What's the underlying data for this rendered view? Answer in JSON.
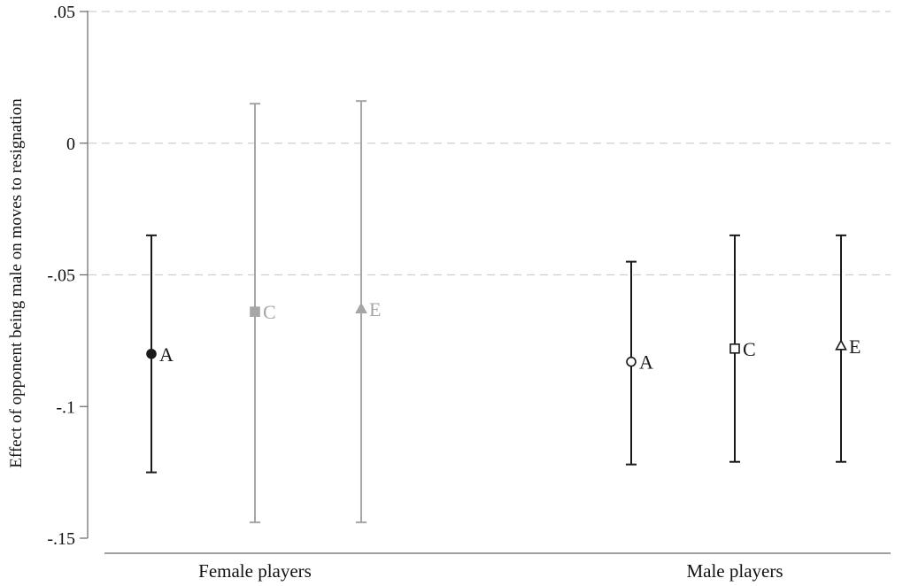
{
  "chart_data": {
    "type": "scatter",
    "title": "",
    "ylabel": "Effect of opponent being male on moves to resignation",
    "xlabel": "",
    "ylim": [
      -0.15,
      0.05
    ],
    "yticks": [
      {
        "value": 0.05,
        "label": ".05"
      },
      {
        "value": 0,
        "label": "0"
      },
      {
        "value": -0.05,
        "label": "-.05"
      },
      {
        "value": -0.1,
        "label": "-.1"
      },
      {
        "value": -0.15,
        "label": "-.15"
      }
    ],
    "grid": {
      "horizontal": true,
      "style": "dashed",
      "at": [
        0.05,
        0,
        -0.05
      ]
    },
    "categories": [
      "Female players",
      "Male players"
    ],
    "colors": {
      "dark": "#1a1a1a",
      "light": "#a6a6a6",
      "grid": "#cfcfcf"
    },
    "points": [
      {
        "group": "Female players",
        "label": "A",
        "estimate": -0.08,
        "ci_low": -0.125,
        "ci_high": -0.035,
        "marker": "circle-filled",
        "tone": "dark"
      },
      {
        "group": "Female players",
        "label": "C",
        "estimate": -0.064,
        "ci_low": -0.144,
        "ci_high": 0.015,
        "marker": "square-filled",
        "tone": "light"
      },
      {
        "group": "Female players",
        "label": "E",
        "estimate": -0.063,
        "ci_low": -0.144,
        "ci_high": 0.016,
        "marker": "triangle-filled",
        "tone": "light"
      },
      {
        "group": "Male players",
        "label": "A",
        "estimate": -0.083,
        "ci_low": -0.122,
        "ci_high": -0.045,
        "marker": "circle-open",
        "tone": "dark"
      },
      {
        "group": "Male players",
        "label": "C",
        "estimate": -0.078,
        "ci_low": -0.121,
        "ci_high": -0.035,
        "marker": "square-open",
        "tone": "dark"
      },
      {
        "group": "Male players",
        "label": "E",
        "estimate": -0.077,
        "ci_low": -0.121,
        "ci_high": -0.035,
        "marker": "triangle-open",
        "tone": "dark"
      }
    ]
  }
}
